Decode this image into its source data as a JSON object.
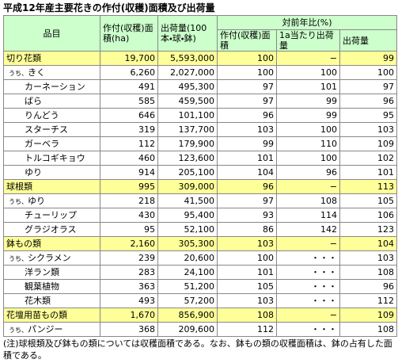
{
  "title": "平成12年産主要花きの作付(収穫)面積及び出荷量",
  "table": {
    "header": {
      "item": "品目",
      "area": "作付(収穫)面積(ha)",
      "shipment": "出荷量(100本・球・鉢)",
      "ratio": "対前年比(%)",
      "ratio_cols": [
        "作付(収穫)面積",
        "1a当たり出荷量",
        "出荷量"
      ]
    },
    "groups": [
      {
        "row": {
          "label": "切り花類",
          "cells": [
            "19,700",
            "5,593,000",
            "100",
            "−",
            "99"
          ]
        },
        "items": [
          {
            "prefix": "うち、",
            "label": "きく",
            "cells": [
              "6,260",
              "2,027,000",
              "100",
              "100",
              "100"
            ]
          },
          {
            "label": "カーネーション",
            "cells": [
              "491",
              "495,300",
              "97",
              "101",
              "97"
            ]
          },
          {
            "label": "ばら",
            "cells": [
              "585",
              "459,500",
              "97",
              "99",
              "96"
            ]
          },
          {
            "label": "りんどう",
            "cells": [
              "646",
              "101,100",
              "96",
              "99",
              "95"
            ]
          },
          {
            "label": "スターチス",
            "cells": [
              "319",
              "137,700",
              "103",
              "100",
              "103"
            ]
          },
          {
            "label": "ガーベラ",
            "cells": [
              "112",
              "179,900",
              "99",
              "110",
              "109"
            ]
          },
          {
            "label": "トルコギキョウ",
            "cells": [
              "460",
              "123,600",
              "101",
              "100",
              "102"
            ]
          },
          {
            "label": "ゆり",
            "cells": [
              "914",
              "205,100",
              "104",
              "96",
              "101"
            ]
          }
        ]
      },
      {
        "row": {
          "label": "球根類",
          "cells": [
            "995",
            "309,000",
            "96",
            "−",
            "113"
          ]
        },
        "items": [
          {
            "prefix": "うち、",
            "label": "ゆり",
            "cells": [
              "218",
              "41,500",
              "97",
              "108",
              "105"
            ]
          },
          {
            "label": "チューリップ",
            "cells": [
              "430",
              "95,400",
              "93",
              "114",
              "106"
            ]
          },
          {
            "label": "グラジオラス",
            "cells": [
              "95",
              "52,100",
              "86",
              "142",
              "123"
            ]
          }
        ]
      },
      {
        "row": {
          "label": "鉢もの類",
          "cells": [
            "2,160",
            "305,300",
            "103",
            "−",
            "104"
          ]
        },
        "items": [
          {
            "prefix": "うち、",
            "label": "シクラメン",
            "cells": [
              "239",
              "20,600",
              "100",
              "・・・",
              "103"
            ]
          },
          {
            "label": "洋ラン類",
            "cells": [
              "283",
              "24,100",
              "101",
              "・・・",
              "108"
            ]
          },
          {
            "label": "観葉植物",
            "cells": [
              "363",
              "51,200",
              "105",
              "・・・",
              "96"
            ]
          },
          {
            "label": "花木類",
            "cells": [
              "493",
              "57,200",
              "103",
              "・・・",
              "112"
            ]
          }
        ]
      },
      {
        "row": {
          "label": "花壇用苗もの類",
          "cells": [
            "1,670",
            "856,900",
            "108",
            "−",
            "109"
          ]
        },
        "items": [
          {
            "prefix": "うち、",
            "label": "パンジー",
            "cells": [
              "368",
              "209,600",
              "112",
              "・・・",
              "108"
            ]
          }
        ]
      }
    ]
  },
  "note": "(注)球根類及び鉢もの類については収穫面積である。なお、鉢もの類の収穫面積は、鉢の占有した面積である。"
}
